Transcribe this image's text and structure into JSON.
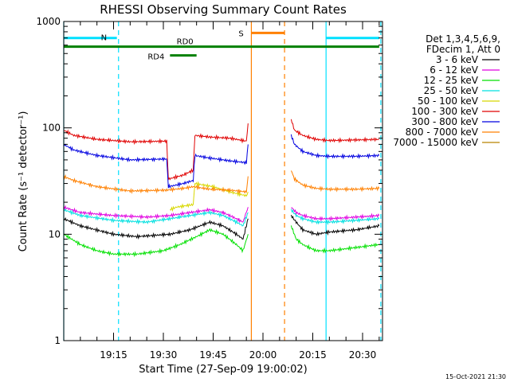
{
  "chart_data": {
    "type": "line",
    "title": "RHESSI Observing Summary Count Rates",
    "xlabel": "Start Time (27-Sep-09 19:00:02)",
    "ylabel": "Count Rate (s⁻¹ detector⁻¹)",
    "y_scale": "log",
    "ylim": [
      1,
      1000
    ],
    "xlim_minutes_after_1900": [
      0,
      96
    ],
    "x_tick_labels": [
      "19:15",
      "19:30",
      "19:45",
      "20:00",
      "20:15",
      "20:30"
    ],
    "x_tick_minutes": [
      15,
      30,
      45,
      60,
      75,
      90
    ],
    "y_tick_labels": [
      "1",
      "10",
      "100",
      "1000"
    ],
    "y_tick_values": [
      1,
      10,
      100,
      1000
    ],
    "legend_header": [
      "Det 1,3,4,5,6,9,",
      "FDecim 1, Att 0"
    ],
    "legend_placement": "right",
    "footer": "15-Oct-2021 21:30",
    "series": [
      {
        "name": "3 - 6 keV",
        "color": "#000000",
        "segments": [
          {
            "x": [
              0,
              5,
              15,
              22,
              32,
              38,
              44,
              48,
              52,
              54,
              55.5
            ],
            "y": [
              14,
              12,
              10,
              9.5,
              10,
              11,
              13,
              12,
              10,
              9,
              14
            ]
          },
          {
            "x": [
              68.5,
              70,
              72,
              76,
              80,
              88,
              95
            ],
            "y": [
              15,
              13,
              11,
              10,
              10.5,
              11,
              12
            ]
          }
        ]
      },
      {
        "name": "6 - 12 keV",
        "color": "#e000e0",
        "segments": [
          {
            "x": [
              0,
              5,
              15,
              25,
              32,
              38,
              44,
              48,
              52,
              54,
              55.5
            ],
            "y": [
              18,
              16,
              15,
              14.5,
              15,
              16,
              17,
              16,
              14,
              13,
              18
            ]
          },
          {
            "x": [
              68.5,
              70,
              72,
              76,
              80,
              88,
              95
            ],
            "y": [
              18,
              16,
              15,
              14,
              14,
              14.5,
              15
            ]
          }
        ]
      },
      {
        "name": "12 - 25 keV",
        "color": "#00e000",
        "segments": [
          {
            "x": [
              0,
              5,
              10,
              15,
              22,
              30,
              35,
              40,
              44,
              48,
              52,
              54,
              55.5
            ],
            "y": [
              10,
              8,
              7,
              6.5,
              6.5,
              7,
              8,
              9.5,
              11,
              10,
              8,
              7,
              10
            ]
          },
          {
            "x": [
              68.5,
              70,
              72,
              76,
              80,
              88,
              95
            ],
            "y": [
              12,
              9,
              8,
              7,
              7,
              7.5,
              8
            ]
          }
        ]
      },
      {
        "name": "25 - 50 keV",
        "color": "#00e0e0",
        "segments": [
          {
            "x": [
              0,
              5,
              15,
              25,
              32,
              38,
              44,
              48,
              52,
              54,
              55.5
            ],
            "y": [
              17,
              15,
              13.5,
              13,
              14,
              15,
              16,
              15,
              13,
              12,
              16
            ]
          },
          {
            "x": [
              68.5,
              70,
              72,
              76,
              80,
              88,
              95
            ],
            "y": [
              17,
              15,
              14,
              13,
              13,
              13.5,
              14
            ]
          }
        ]
      },
      {
        "name": "50 - 100 keV",
        "color": "#d8d800",
        "segments": [
          {
            "x": [
              32,
              34,
              39,
              39.5,
              45,
              50,
              55,
              55.5
            ],
            "y": [
              17,
              18,
              19,
              30,
              28,
              25,
              23,
              25
            ]
          }
        ]
      },
      {
        "name": "100 - 300 keV",
        "color": "#e00000",
        "segments": [
          {
            "x": [
              0,
              3,
              10,
              20,
              31,
              31.5,
              36,
              39,
              39.5,
              44,
              50,
              55,
              55.5
            ],
            "y": [
              95,
              85,
              78,
              74,
              75,
              33,
              36,
              40,
              85,
              82,
              80,
              75,
              110
            ]
          },
          {
            "x": [
              68.5,
              69.5,
              72,
              76,
              80,
              88,
              95
            ],
            "y": [
              120,
              95,
              85,
              78,
              76,
              77,
              78
            ]
          }
        ]
      },
      {
        "name": "300 - 800 keV",
        "color": "#0000e0",
        "segments": [
          {
            "x": [
              0,
              3,
              10,
              20,
              31,
              31.5,
              36,
              39,
              39.5,
              44,
              50,
              55,
              55.5
            ],
            "y": [
              70,
              62,
              55,
              50,
              51,
              28,
              30,
              32,
              55,
              52,
              49,
              47,
              70
            ]
          },
          {
            "x": [
              68.5,
              69.5,
              72,
              76,
              80,
              88,
              95
            ],
            "y": [
              85,
              70,
              60,
              55,
              54,
              54,
              55
            ]
          }
        ]
      },
      {
        "name": "800 - 7000 keV",
        "color": "#ff8000",
        "segments": [
          {
            "x": [
              0,
              3,
              10,
              20,
              31,
              36,
              39,
              44,
              50,
              55,
              55.5
            ],
            "y": [
              35,
              32,
              28,
              25.5,
              26,
              27,
              28,
              26.5,
              26,
              25,
              35
            ]
          },
          {
            "x": [
              68.5,
              69.5,
              72,
              76,
              80,
              88,
              95
            ],
            "y": [
              40,
              33,
              29,
              27,
              26.5,
              26.5,
              27
            ]
          }
        ]
      },
      {
        "name": "7000 - 15000 keV",
        "color": "#b88400",
        "segments": []
      }
    ],
    "annotations": {
      "state_bars": [
        {
          "label": "N",
          "color": "#00e0ff",
          "y": 700,
          "ranges": [
            [
              0,
              16
            ],
            [
              79,
              95
            ]
          ]
        },
        {
          "label": "RD0",
          "color": "#008000",
          "y": 580,
          "ranges": [
            [
              0,
              95
            ]
          ]
        },
        {
          "label": "RD4",
          "color": "#008000",
          "y": 480,
          "ranges": [
            [
              32,
              40
            ]
          ]
        },
        {
          "label": "S",
          "color": "#ff8000",
          "y": 780,
          "ranges": [
            [
              56.5,
              66.5
            ]
          ]
        }
      ],
      "vertical_lines": [
        {
          "x": 0,
          "color": "#00e0ff",
          "style": "solid"
        },
        {
          "x": 16.5,
          "color": "#00e0ff",
          "style": "dashed"
        },
        {
          "x": 79,
          "color": "#00e0ff",
          "style": "solid"
        },
        {
          "x": 95.5,
          "color": "#00e0ff",
          "style": "dashed"
        },
        {
          "x": 56.5,
          "color": "#ff8000",
          "style": "solid"
        },
        {
          "x": 66.5,
          "color": "#ff8000",
          "style": "dashed"
        }
      ]
    }
  }
}
